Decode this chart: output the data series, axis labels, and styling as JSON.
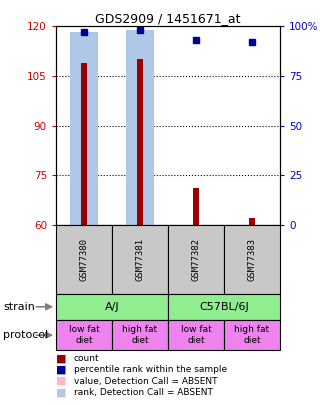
{
  "title": "GDS2909 / 1451671_at",
  "samples": [
    "GSM77380",
    "GSM77381",
    "GSM77382",
    "GSM77383"
  ],
  "count_values": [
    109,
    110,
    71,
    62
  ],
  "percentile_values": [
    97,
    98,
    93,
    92
  ],
  "absent_value_bars": [
    109,
    110,
    null,
    null
  ],
  "absent_rank_bars": [
    97,
    98,
    null,
    null
  ],
  "ylim_left": [
    60,
    120
  ],
  "ylim_right": [
    0,
    100
  ],
  "yticks_left": [
    60,
    75,
    90,
    105,
    120
  ],
  "yticks_right": [
    0,
    25,
    50,
    75,
    100
  ],
  "ytick_labels_right": [
    "0",
    "25",
    "50",
    "75",
    "100%"
  ],
  "strain_color": "#90EE90",
  "protocol_color": "#EE82EE",
  "sample_box_color": "#C8C8C8",
  "count_color": "#990000",
  "percentile_color": "#000099",
  "absent_value_color": "#FFB6C1",
  "absent_rank_color": "#B0C8E8",
  "grid_color": "#808080",
  "left_tick_color": "#CC0000",
  "right_tick_color": "#0000CC",
  "protocol_labels": [
    "low fat\ndiet",
    "high fat\ndiet",
    "low fat\ndiet",
    "high fat\ndiet"
  ]
}
